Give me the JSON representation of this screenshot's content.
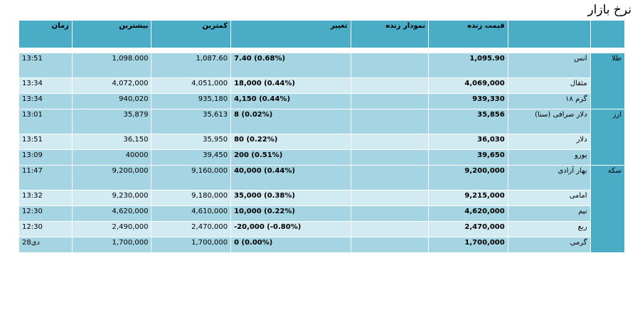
{
  "page": {
    "title": "نرخ بازار"
  },
  "table": {
    "headers": {
      "item": "",
      "price": "قیمت زنده",
      "chart": "نمودار زنده",
      "change": "تغییر",
      "low": "کمترین",
      "high": "بیشترین",
      "time": "زمان"
    },
    "groups": [
      {
        "category": "طلا",
        "rows": [
          {
            "name": "انس",
            "price": "1,095.90",
            "chart": "",
            "change": "7.40 (0.68%)",
            "low": "1,087.60",
            "high": "1,098.000",
            "time": "13:51"
          },
          {
            "name": "مثقال",
            "price": "4,069,000",
            "chart": "",
            "change": "18,000 (0.44%)",
            "low": "4,051,000",
            "high": "4,072,000",
            "time": "13:34"
          },
          {
            "name": "گرم ۱۸",
            "price": "939,330",
            "chart": "",
            "change": "4,150 (0.44%)",
            "low": "935,180",
            "high": "940,020",
            "time": "13:34"
          }
        ]
      },
      {
        "category": "ارز",
        "rows": [
          {
            "name": "دلار صرافی (سنا)",
            "price": "35,856",
            "chart": "",
            "change": "8 (0.02%)",
            "low": "35,613",
            "high": "35,879",
            "time": "13:01"
          },
          {
            "name": "دلار",
            "price": "36,030",
            "chart": "",
            "change": "80 (0.22%)",
            "low": "35,950",
            "high": "36,150",
            "time": "13:51"
          },
          {
            "name": "یورو",
            "price": "39,650",
            "chart": "",
            "change": "200 (0.51%)",
            "low": "39,450",
            "high": "40000",
            "time": "13:09"
          }
        ]
      },
      {
        "category": "سکه",
        "rows": [
          {
            "name": "بهار آزادی",
            "price": "9,200,000",
            "chart": "",
            "change": "40,000 (0.44%)",
            "low": "9,160,000",
            "high": "9,200,000",
            "time": "11:47"
          },
          {
            "name": "امامی",
            "price": "9,215,000",
            "chart": "",
            "change": "35,000 (0.38%)",
            "low": "9,180,000",
            "high": "9,230,000",
            "time": "13:32"
          },
          {
            "name": "نیم",
            "price": "4,620,000",
            "chart": "",
            "change": "10,000 (0.22%)",
            "low": "4,610,000",
            "high": "4,620,000",
            "time": "12:30"
          },
          {
            "name": "ربع",
            "price": "2,470,000",
            "chart": "",
            "change": "-20,000 (-0.80%)",
            "low": "2,470,000",
            "high": "2,490,000",
            "time": "12:30"
          },
          {
            "name": "گرمی",
            "price": "1,700,000",
            "chart": "",
            "change": "0 (0.00%)",
            "low": "1,700,000",
            "high": "1,700,000",
            "time": "28دی"
          }
        ]
      }
    ]
  },
  "colors": {
    "header": "#4bacc6",
    "row_dark": "#a5d5e2",
    "row_light": "#d2eaf1"
  }
}
